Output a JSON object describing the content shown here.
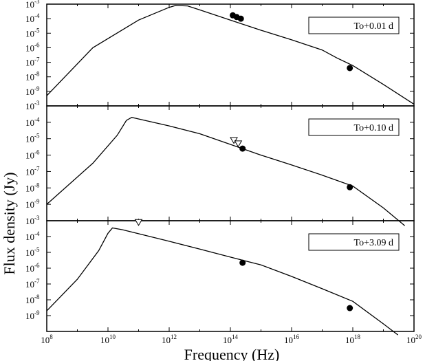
{
  "chart_data": {
    "type": "line",
    "xlabel": "Frequency (Hz)",
    "ylabel": "Flux density (Jy)",
    "x_scale": "log",
    "y_scale": "log",
    "xlim": [
      100000000.0,
      1e+20
    ],
    "ylim": [
      1e-10,
      0.001
    ],
    "x_tick_labels": [
      {
        "value": 100000000.0,
        "base": "10",
        "exp": "8"
      },
      {
        "value": 10000000000.0,
        "base": "10",
        "exp": "10"
      },
      {
        "value": 1000000000000.0,
        "base": "10",
        "exp": "12"
      },
      {
        "value": 100000000000000.0,
        "base": "10",
        "exp": "14"
      },
      {
        "value": 1e+16,
        "base": "10",
        "exp": "16"
      },
      {
        "value": 1e+18,
        "base": "10",
        "exp": "18"
      },
      {
        "value": 1e+20,
        "base": "10",
        "exp": "20"
      }
    ],
    "y_tick_labels": [
      {
        "value": 0.001,
        "base": "10",
        "exp": "-3"
      },
      {
        "value": 0.0001,
        "base": "10",
        "exp": "-4"
      },
      {
        "value": 1e-05,
        "base": "10",
        "exp": "-5"
      },
      {
        "value": 1e-06,
        "base": "10",
        "exp": "-6"
      },
      {
        "value": 1e-07,
        "base": "10",
        "exp": "-7"
      },
      {
        "value": 1e-08,
        "base": "10",
        "exp": "-8"
      },
      {
        "value": 1e-09,
        "base": "10",
        "exp": "-9"
      }
    ],
    "grid": false,
    "legend_placement": "top-right",
    "colors": {
      "line": "#000000",
      "marker": "#000000",
      "background": "#ffffff"
    },
    "panels": [
      {
        "label": "To+0.01 d",
        "model_curve": [
          {
            "x": 100000000.0,
            "y": 5e-10
          },
          {
            "x": 3200000000.0,
            "y": 1e-06
          },
          {
            "x": 100000000000.0,
            "y": 8e-05
          },
          {
            "x": 1000000000000.0,
            "y": 0.0006
          },
          {
            "x": 1600000000000.0,
            "y": 0.0008
          },
          {
            "x": 4000000000000.0,
            "y": 0.00075
          },
          {
            "x": 10000000000000.0,
            "y": 0.0004
          },
          {
            "x": 100000000000000.0,
            "y": 8e-05
          },
          {
            "x": 1000000000000000.0,
            "y": 1.6e-05
          },
          {
            "x": 1e+16,
            "y": 3.5e-06
          },
          {
            "x": 1e+17,
            "y": 7e-07
          },
          {
            "x": 3e+17,
            "y": 2e-07
          },
          {
            "x": 1e+18,
            "y": 6e-08
          },
          {
            "x": 1e+19,
            "y": 3e-09
          },
          {
            "x": 1e+20,
            "y": 1.3e-10
          }
        ],
        "detections": [
          {
            "x": 120000000000000.0,
            "y": 0.00017
          },
          {
            "x": 160000000000000.0,
            "y": 0.00013
          },
          {
            "x": 220000000000000.0,
            "y": 0.0001
          },
          {
            "x": 8e+17,
            "y": 4e-08
          }
        ],
        "upper_limits": []
      },
      {
        "label": "To+0.10 d",
        "model_curve": [
          {
            "x": 100000000.0,
            "y": 1e-09
          },
          {
            "x": 3200000000.0,
            "y": 3.2e-07
          },
          {
            "x": 20000000000.0,
            "y": 1.6e-05
          },
          {
            "x": 40000000000.0,
            "y": 0.00013
          },
          {
            "x": 60000000000.0,
            "y": 0.0002
          },
          {
            "x": 100000000000.0,
            "y": 0.00016
          },
          {
            "x": 1000000000000.0,
            "y": 6e-05
          },
          {
            "x": 10000000000000.0,
            "y": 2e-05
          },
          {
            "x": 100000000000000.0,
            "y": 4.5e-06
          },
          {
            "x": 1000000000000000.0,
            "y": 1e-06
          },
          {
            "x": 1e+16,
            "y": 2.5e-07
          },
          {
            "x": 1e+17,
            "y": 6e-08
          },
          {
            "x": 1e+18,
            "y": 1.3e-08
          },
          {
            "x": 1e+19,
            "y": 6e-10
          },
          {
            "x": 5e+19,
            "y": 5e-11
          }
        ],
        "detections": [
          {
            "x": 250000000000000.0,
            "y": 2.5e-06
          },
          {
            "x": 8e+17,
            "y": 1.1e-08
          }
        ],
        "upper_limits": [
          {
            "x": 130000000000000.0,
            "y": 8e-06
          },
          {
            "x": 180000000000000.0,
            "y": 5e-06
          }
        ]
      },
      {
        "label": "To+3.09 d",
        "model_curve": [
          {
            "x": 100000000.0,
            "y": 2e-09
          },
          {
            "x": 1000000000.0,
            "y": 2e-07
          },
          {
            "x": 5000000000.0,
            "y": 1.3e-05
          },
          {
            "x": 10000000000.0,
            "y": 0.00016
          },
          {
            "x": 14000000000.0,
            "y": 0.00035
          },
          {
            "x": 30000000000.0,
            "y": 0.00027
          },
          {
            "x": 100000000000.0,
            "y": 0.00015
          },
          {
            "x": 1000000000000.0,
            "y": 5e-05
          },
          {
            "x": 10000000000000.0,
            "y": 1.6e-05
          },
          {
            "x": 100000000000000.0,
            "y": 5e-06
          },
          {
            "x": 1000000000000000.0,
            "y": 1.6e-06
          },
          {
            "x": 1e+16,
            "y": 3e-07
          },
          {
            "x": 1e+17,
            "y": 5e-08
          },
          {
            "x": 1e+18,
            "y": 8e-09
          },
          {
            "x": 1e+19,
            "y": 3e-10
          },
          {
            "x": 3e+19,
            "y": 6e-11
          }
        ],
        "detections": [
          {
            "x": 250000000000000.0,
            "y": 2.2e-06
          },
          {
            "x": 8e+17,
            "y": 3e-09
          }
        ],
        "upper_limits": [
          {
            "x": 100000000000.0,
            "y": 0.0008
          }
        ]
      }
    ]
  }
}
